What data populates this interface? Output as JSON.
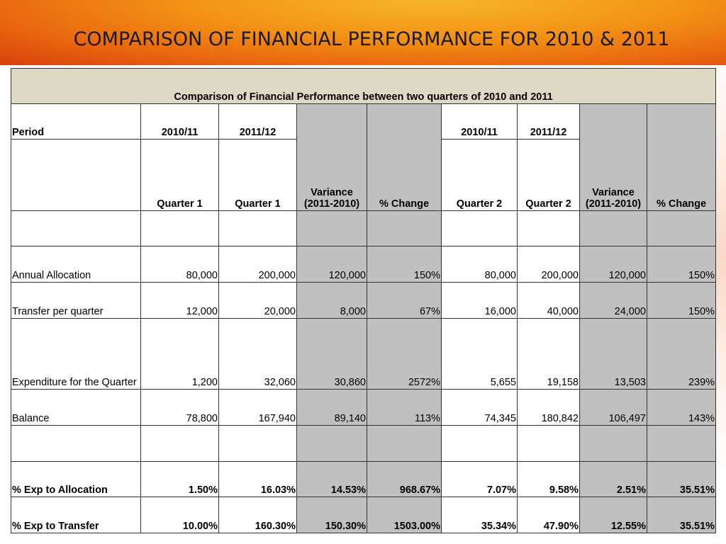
{
  "slide_title": "COMPARISON OF FINANCIAL PERFORMANCE FOR 2010 & 2011",
  "table": {
    "caption": "Comparison of Financial Performance between two quarters of 2010 and 2011",
    "header1": {
      "period": "Period",
      "q1_2010": "2010/11",
      "q1_2011": "2011/12",
      "q2_2010": "2010/11",
      "q2_2011": "2011/12"
    },
    "header2": {
      "q1_a": "Quarter 1",
      "q1_b": "Quarter 1",
      "variance1": "Variance (2011-2010)",
      "change1": "% Change",
      "q2_a": "Quarter 2",
      "q2_b": "Quarter 2",
      "variance2": "Variance (2011-2010)",
      "change2": "% Change"
    },
    "rows": [
      {
        "label": "Annual Allocation",
        "v": [
          "80,000",
          "200,000",
          "120,000",
          "150%",
          "80,000",
          "200,000",
          "120,000",
          "150%"
        ]
      },
      {
        "label": "Transfer per quarter",
        "v": [
          "12,000",
          "20,000",
          "8,000",
          "67%",
          "16,000",
          "40,000",
          "24,000",
          "150%"
        ]
      },
      {
        "label": "Expenditure for the Quarter",
        "v": [
          "1,200",
          "32,060",
          "30,860",
          "2572%",
          "5,655",
          "19,158",
          "13,503",
          "239%"
        ]
      },
      {
        "label": "Balance",
        "v": [
          "78,800",
          "167,940",
          "89,140",
          "113%",
          "74,345",
          "180,842",
          "106,497",
          "143%"
        ]
      },
      {
        "label": "% Exp to Allocation",
        "v": [
          "1.50%",
          "16.03%",
          "14.53%",
          "968.67%",
          "7.07%",
          "9.58%",
          "2.51%",
          "35.51%"
        ]
      },
      {
        "label": "% Exp to Transfer",
        "v": [
          "10.00%",
          "160.30%",
          "150.30%",
          "1503.00%",
          "35.34%",
          "47.90%",
          "12.55%",
          "35.51%"
        ]
      }
    ]
  },
  "colors": {
    "caption_bg": "#ddd9c4",
    "variance_bg": "#c0c0c0",
    "banner": "#f08a14"
  }
}
